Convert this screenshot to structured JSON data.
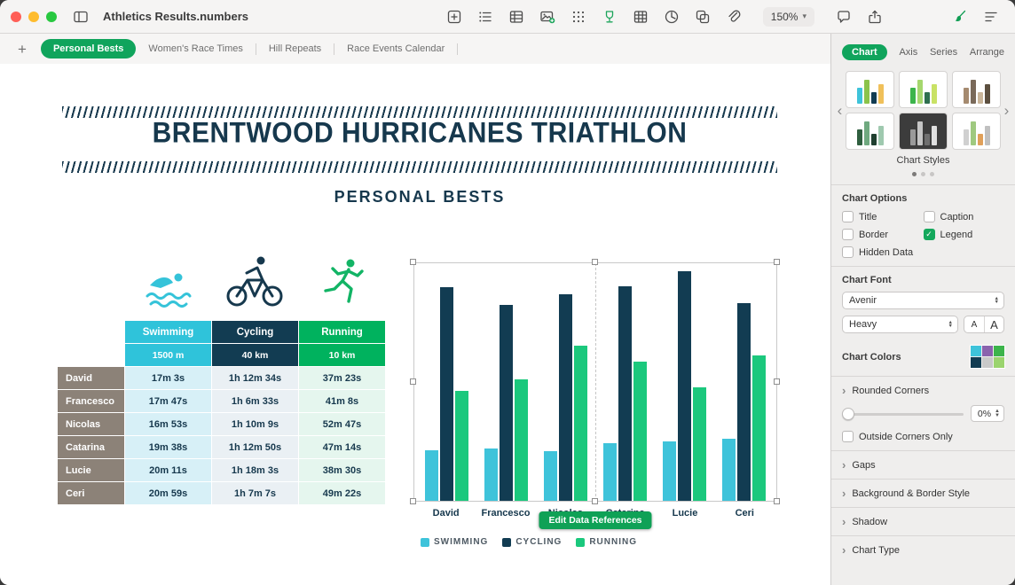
{
  "colors": {
    "accent_green": "#10a45c",
    "title_navy": "#16384d"
  },
  "window": {
    "title": "Athletics Results.numbers",
    "zoom_level": "150%"
  },
  "toolbar": {
    "left_icons": [
      "sidebar-toggle-icon"
    ],
    "icons": [
      "insert-icon",
      "function-icon",
      "categories-icon",
      "media-icon",
      "apps-icon",
      "shape-icon",
      "table-icon",
      "chart-icon",
      "shapes-icon",
      "attachment-icon"
    ],
    "right_icons": [
      "comment-icon",
      "share-icon"
    ],
    "far_icons": [
      "format-icon",
      "organize-icon"
    ]
  },
  "tabs": [
    {
      "label": "Personal Bests",
      "active": true
    },
    {
      "label": "Women's Race Times",
      "active": false
    },
    {
      "label": "Hill Repeats",
      "active": false
    },
    {
      "label": "Race Events Calendar",
      "active": false
    }
  ],
  "sheet": {
    "title": "BRENTWOOD HURRICANES TRIATHLON",
    "subtitle": "PERSONAL BESTS"
  },
  "table": {
    "columns": [
      {
        "label": "Swimming",
        "unit": "1500 m",
        "color": "#2fc3da",
        "tint": "#d7f0f7"
      },
      {
        "label": "Cycling",
        "unit": "40 km",
        "color": "#123c52",
        "tint": "#eaf0f4"
      },
      {
        "label": "Running",
        "unit": "10 km",
        "color": "#00b25e",
        "tint": "#e5f6ee"
      }
    ],
    "rows": [
      {
        "name": "David",
        "values": [
          "17m 3s",
          "1h 12m 34s",
          "37m 23s"
        ]
      },
      {
        "name": "Francesco",
        "values": [
          "17m 47s",
          "1h 6m 33s",
          "41m 8s"
        ]
      },
      {
        "name": "Nicolas",
        "values": [
          "16m 53s",
          "1h 10m 9s",
          "52m 47s"
        ]
      },
      {
        "name": "Catarina",
        "values": [
          "19m 38s",
          "1h 12m 50s",
          "47m 14s"
        ]
      },
      {
        "name": "Lucie",
        "values": [
          "20m 11s",
          "1h 18m 3s",
          "38m 30s"
        ]
      },
      {
        "name": "Ceri",
        "values": [
          "20m 59s",
          "1h 7m 7s",
          "49m 22s"
        ]
      }
    ]
  },
  "chart_data": {
    "type": "bar",
    "title": "",
    "xlabel": "",
    "ylabel": "",
    "categories": [
      "David",
      "Francesco",
      "Nicolas",
      "Catarina",
      "Lucie",
      "Ceri"
    ],
    "series": [
      {
        "name": "SWIMMING",
        "color": "#3ec3da",
        "values": [
          17.05,
          17.78,
          16.88,
          19.63,
          20.18,
          20.98
        ]
      },
      {
        "name": "CYCLING",
        "color": "#123c52",
        "values": [
          72.57,
          66.55,
          70.15,
          72.83,
          78.05,
          67.12
        ]
      },
      {
        "name": "RUNNING",
        "color": "#1bc87d",
        "values": [
          37.38,
          41.13,
          52.78,
          47.23,
          38.5,
          49.37
        ]
      }
    ],
    "ylim": [
      0,
      80
    ],
    "grid": false,
    "legend_position": "bottom",
    "units": "minutes"
  },
  "chart": {
    "edit_button": "Edit Data References",
    "selected": true
  },
  "inspector": {
    "tabs": [
      {
        "label": "Chart",
        "active": true
      },
      {
        "label": "Axis",
        "active": false
      },
      {
        "label": "Series",
        "active": false
      },
      {
        "label": "Arrange",
        "active": false
      }
    ],
    "styles_label": "Chart Styles",
    "styles": [
      {
        "bg": "#ffffff",
        "bars": [
          "#3ec3da",
          "#8bc34a",
          "#123c52",
          "#f0c05a"
        ]
      },
      {
        "bg": "#ffffff",
        "bars": [
          "#3cb44b",
          "#a5d76e",
          "#2f6f4f",
          "#c9e265"
        ]
      },
      {
        "bg": "#ffffff",
        "bars": [
          "#a58a6f",
          "#7a6a5a",
          "#c9b59a",
          "#5c4f3f"
        ]
      },
      {
        "bg": "#ffffff",
        "bars": [
          "#2f5f3f",
          "#6fa97f",
          "#1f3f2f",
          "#9fc9af"
        ]
      },
      {
        "bg": "#3c3c3c",
        "bars": [
          "#9a9a9a",
          "#c5c5c5",
          "#6f6f6f",
          "#e0e0e0"
        ]
      },
      {
        "bg": "#ffffff",
        "bars": [
          "#d0d0d0",
          "#9fc97f",
          "#e0a05a",
          "#c0c0c0"
        ]
      }
    ],
    "chart_options": {
      "title": "Chart Options",
      "checkboxes": [
        {
          "label": "Title",
          "checked": false
        },
        {
          "label": "Caption",
          "checked": false
        },
        {
          "label": "Border",
          "checked": false
        },
        {
          "label": "Legend",
          "checked": true
        },
        {
          "label": "Hidden Data",
          "checked": false
        }
      ]
    },
    "chart_font": {
      "title": "Chart Font",
      "family": "Avenir",
      "weight": "Heavy",
      "smaller": "A",
      "larger": "A"
    },
    "chart_colors": {
      "title": "Chart Colors",
      "swatches": [
        "#3ec3da",
        "#8a63ad",
        "#3cb44b",
        "#123c52",
        "#c9c9c9",
        "#9bd46e"
      ]
    },
    "rounded_corners": {
      "title": "Rounded Corners",
      "value": "0%",
      "checkbox_label": "Outside Corners Only",
      "checked": false
    },
    "sections": [
      {
        "title": "Gaps"
      },
      {
        "title": "Background & Border Style"
      },
      {
        "title": "Shadow"
      },
      {
        "title": "Chart Type"
      }
    ]
  }
}
